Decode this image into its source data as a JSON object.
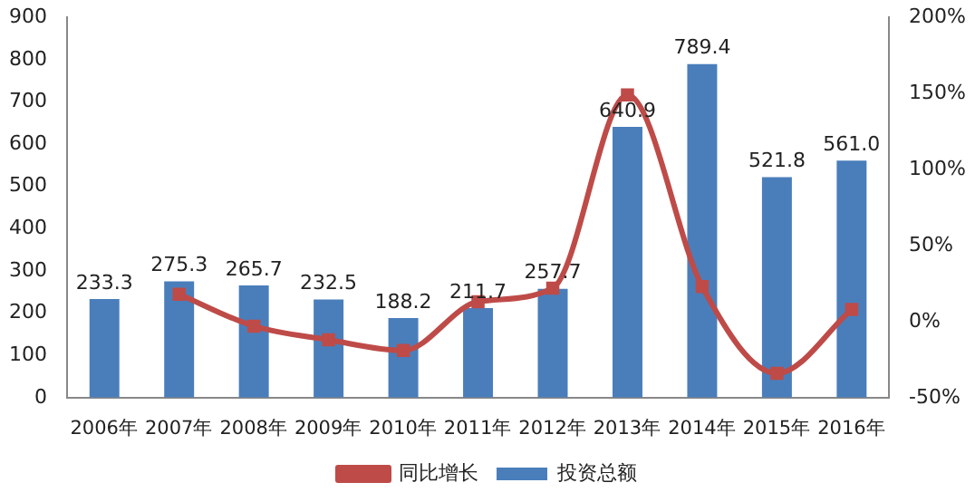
{
  "chart_data": {
    "type": "bar",
    "categories": [
      "2006年",
      "2007年",
      "2008年",
      "2009年",
      "2010年",
      "2011年",
      "2012年",
      "2013年",
      "2014年",
      "2015年",
      "2016年"
    ],
    "series": [
      {
        "name": "投资总额",
        "color": "#4a7ebb",
        "values": [
          233.3,
          275.3,
          265.7,
          232.5,
          188.2,
          211.7,
          257.7,
          640.9,
          789.4,
          521.8,
          561.0
        ],
        "value_labels": [
          "233.3",
          "275.3",
          "265.7",
          "232.5",
          "188.2",
          "211.7",
          "257.7",
          "640.9",
          "789.4",
          "521.8",
          "561.0"
        ]
      },
      {
        "name": "同比增长",
        "type": "line",
        "axis": "y2",
        "color": "#be4b48",
        "marker": "square",
        "values": [
          null,
          18,
          -3,
          -12,
          -19,
          13,
          22,
          149,
          23,
          -34,
          8
        ]
      }
    ],
    "ylim": [
      0,
      900
    ],
    "yticks": [
      0,
      100,
      200,
      300,
      400,
      500,
      600,
      700,
      800,
      900
    ],
    "y2lim": [
      -50,
      200
    ],
    "y2ticks": [
      {
        "value": -50,
        "label": "-50%"
      },
      {
        "value": 0,
        "label": "0%"
      },
      {
        "value": 50,
        "label": "50%"
      },
      {
        "value": 100,
        "label": "100%"
      },
      {
        "value": 150,
        "label": "150%"
      },
      {
        "value": 200,
        "label": "200%"
      }
    ],
    "legend": "bottom"
  }
}
